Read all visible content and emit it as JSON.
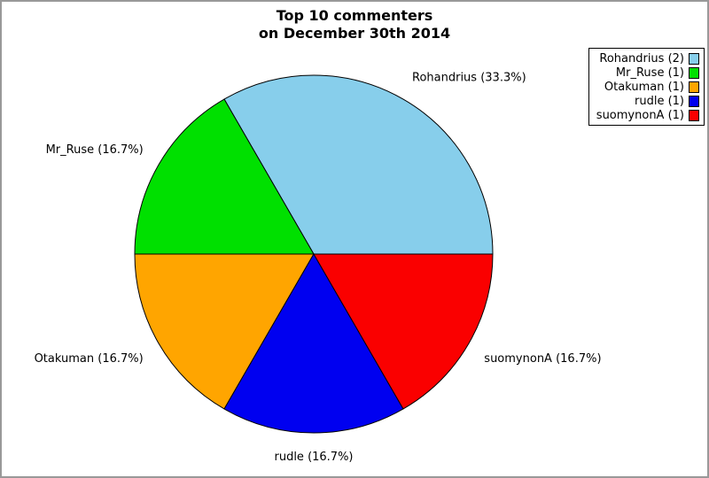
{
  "title": {
    "line1": "Top 10 commenters",
    "line2": "on December 30th 2014"
  },
  "chart_data": {
    "type": "pie",
    "title": "Top 10 commenters on December 30th 2014",
    "start_angle_deg": 0,
    "direction": "counterclockwise",
    "legend_position": "upper right",
    "edge_color": "#000000",
    "slices": [
      {
        "label": "Rohandrius",
        "value": 2,
        "percent": 33.3,
        "color": "#87CEEB",
        "slice_label": "Rohandrius (33.3%)",
        "legend_label": "Rohandrius (2)"
      },
      {
        "label": "Mr_Ruse",
        "value": 1,
        "percent": 16.7,
        "color": "#00E000",
        "slice_label": "Mr_Ruse (16.7%)",
        "legend_label": "Mr_Ruse (1)"
      },
      {
        "label": "Otakuman",
        "value": 1,
        "percent": 16.7,
        "color": "#FFA500",
        "slice_label": "Otakuman (16.7%)",
        "legend_label": "Otakuman (1)"
      },
      {
        "label": "rudle",
        "value": 1,
        "percent": 16.7,
        "color": "#0000F0",
        "slice_label": "rudle (16.7%)",
        "legend_label": "rudle (1)"
      },
      {
        "label": "suomynonA",
        "value": 1,
        "percent": 16.7,
        "color": "#FA0000",
        "slice_label": "suomynonA (16.7%)",
        "legend_label": "suomynonA (1)"
      }
    ]
  }
}
